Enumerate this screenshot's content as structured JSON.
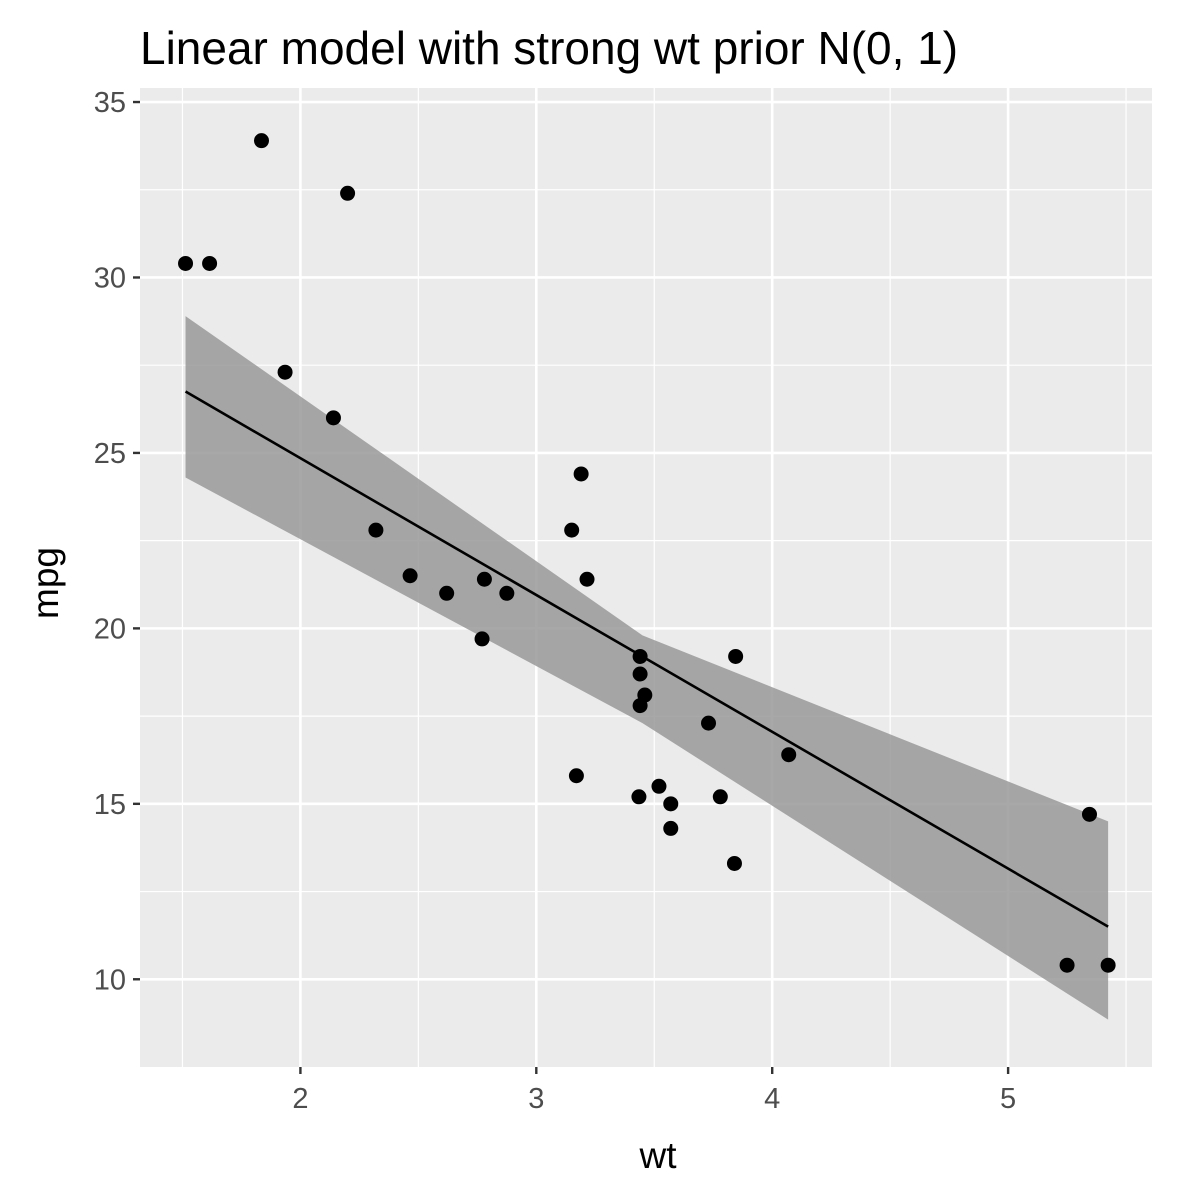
{
  "chart_data": {
    "type": "scatter",
    "title": "Linear model with strong wt prior N(0, 1)",
    "xlabel": "wt",
    "ylabel": "mpg",
    "xlim": [
      1.32,
      5.61
    ],
    "ylim": [
      7.5,
      35.4
    ],
    "x_ticks": [
      2,
      3,
      4,
      5
    ],
    "y_ticks": [
      10,
      15,
      20,
      25,
      30,
      35
    ],
    "x_minor_ticks": [
      1.5,
      2.5,
      3.5,
      4.5,
      5.5
    ],
    "y_minor_ticks": [
      12.5,
      17.5,
      22.5,
      27.5,
      32.5
    ],
    "grid": true,
    "legend": "none",
    "colors": {
      "panel": "#ebebeb",
      "grid": "#ffffff",
      "points": "#000000",
      "ribbon": "#999999",
      "line": "#000000"
    },
    "points": [
      {
        "x": 2.62,
        "y": 21.0
      },
      {
        "x": 2.875,
        "y": 21.0
      },
      {
        "x": 2.32,
        "y": 22.8
      },
      {
        "x": 3.215,
        "y": 21.4
      },
      {
        "x": 3.44,
        "y": 18.7
      },
      {
        "x": 3.46,
        "y": 18.1
      },
      {
        "x": 3.57,
        "y": 14.3
      },
      {
        "x": 3.19,
        "y": 24.4
      },
      {
        "x": 3.15,
        "y": 22.8
      },
      {
        "x": 3.44,
        "y": 19.2
      },
      {
        "x": 3.44,
        "y": 17.8
      },
      {
        "x": 4.07,
        "y": 16.4
      },
      {
        "x": 3.73,
        "y": 17.3
      },
      {
        "x": 3.78,
        "y": 15.2
      },
      {
        "x": 5.25,
        "y": 10.4
      },
      {
        "x": 5.424,
        "y": 10.4
      },
      {
        "x": 5.345,
        "y": 14.7
      },
      {
        "x": 2.2,
        "y": 32.4
      },
      {
        "x": 1.615,
        "y": 30.4
      },
      {
        "x": 1.835,
        "y": 33.9
      },
      {
        "x": 2.465,
        "y": 21.5
      },
      {
        "x": 3.52,
        "y": 15.5
      },
      {
        "x": 3.435,
        "y": 15.2
      },
      {
        "x": 3.84,
        "y": 13.3
      },
      {
        "x": 3.845,
        "y": 19.2
      },
      {
        "x": 1.935,
        "y": 27.3
      },
      {
        "x": 2.14,
        "y": 26.0
      },
      {
        "x": 1.513,
        "y": 30.4
      },
      {
        "x": 3.17,
        "y": 15.8
      },
      {
        "x": 2.77,
        "y": 19.7
      },
      {
        "x": 3.57,
        "y": 15.0
      },
      {
        "x": 2.78,
        "y": 21.4
      }
    ],
    "fit_line": {
      "x": [
        1.513,
        5.424
      ],
      "y": [
        26.75,
        11.5
      ]
    },
    "ribbon": {
      "x": [
        1.513,
        3.45,
        5.424
      ],
      "lower": [
        24.3,
        17.3,
        8.85
      ],
      "upper": [
        28.9,
        19.8,
        14.5
      ]
    }
  }
}
